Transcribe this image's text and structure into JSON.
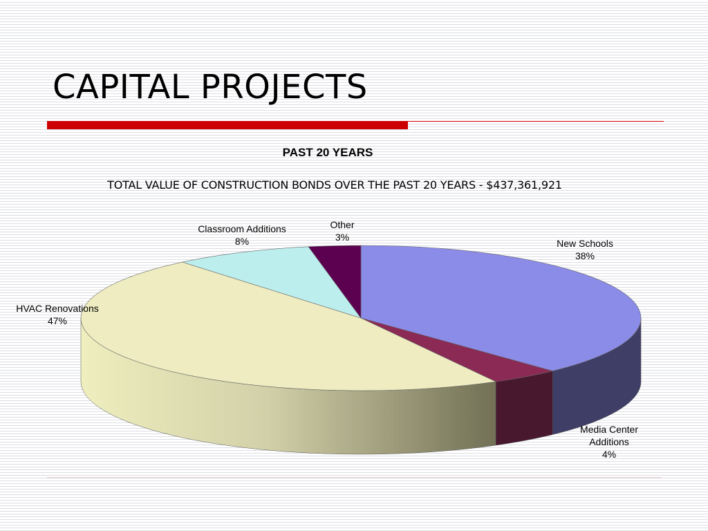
{
  "slide": {
    "title": "CAPITAL PROJECTS",
    "accent_color": "#cc0000"
  },
  "chart_data": {
    "type": "pie",
    "title": "PAST 20 YEARS",
    "subtitle": "TOTAL VALUE OF CONSTRUCTION  BONDS OVER THE PAST 20 YEARS - $437,361,921",
    "style": "3d",
    "start": "12 o'clock",
    "direction": "clockwise",
    "slices": [
      {
        "name": "New Schools",
        "value": 38,
        "label": "38%",
        "color": "#8b8be8",
        "side_color": "#3e3e66"
      },
      {
        "name": "Media Center Additions",
        "value": 4,
        "label": "4%",
        "color": "#8a2a55",
        "side_color": "#48182e"
      },
      {
        "name": "HVAC Renovations",
        "value": 47,
        "label": "47%",
        "color": "#eeecc0",
        "side_color": "#a8a888"
      },
      {
        "name": "Classroom Additions",
        "value": 8,
        "label": "8%",
        "color": "#bdeeee",
        "side_color": "#7fa8a8"
      },
      {
        "name": "Other",
        "value": 3,
        "label": "3%",
        "color": "#5c0050",
        "side_color": "#3a0033"
      }
    ]
  }
}
